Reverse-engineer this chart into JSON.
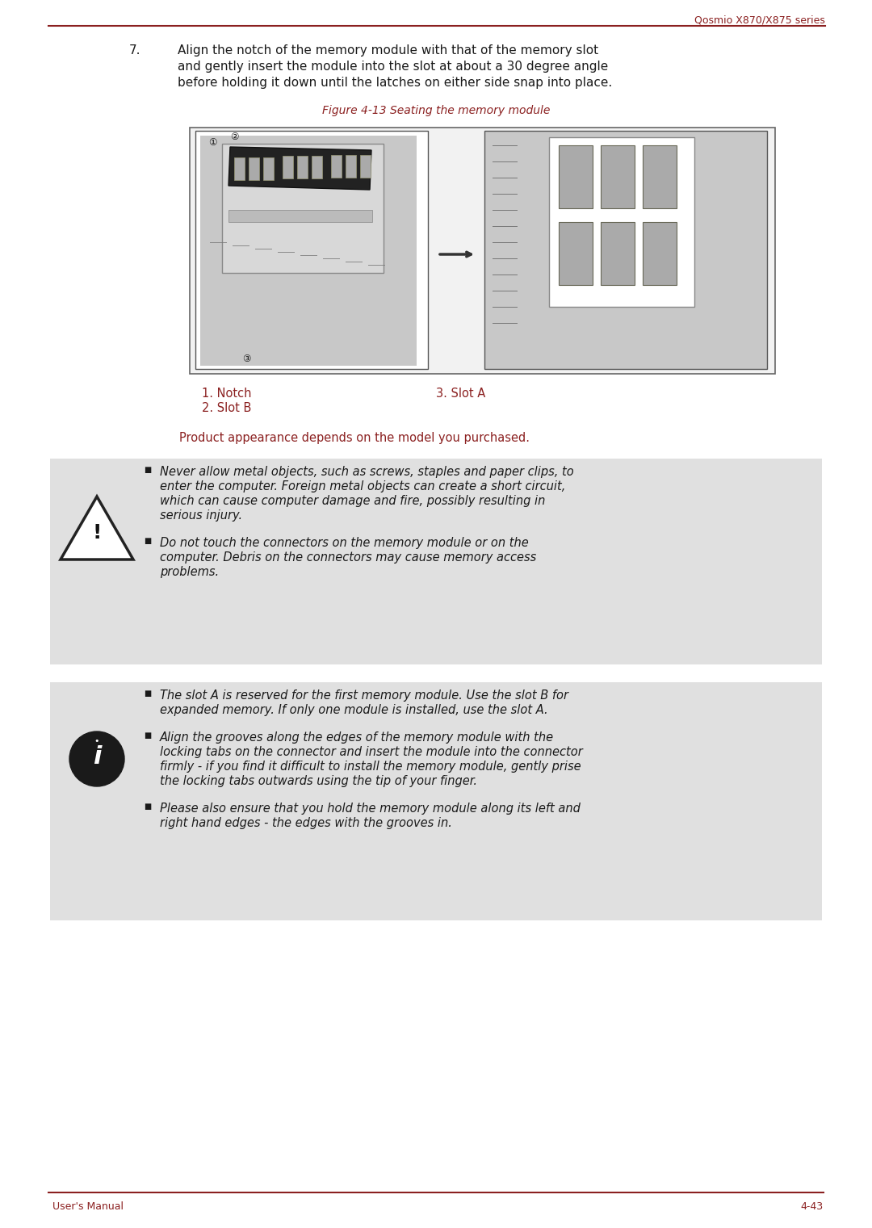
{
  "bg_color": "#ffffff",
  "header_text": "Qosmio X870/X875 series",
  "header_color": "#8b2020",
  "header_line_color": "#8b2020",
  "footer_text_left": "User's Manual",
  "footer_text_right": "4-43",
  "footer_color": "#8b2020",
  "step_number": "7.",
  "step_text_line1": "Align the notch of the memory module with that of the memory slot",
  "step_text_line2": "and gently insert the module into the slot at about a 30 degree angle",
  "step_text_line3": "before holding it down until the latches on either side snap into place.",
  "figure_caption": "Figure 4-13 Seating the memory module",
  "figure_caption_color": "#8b2020",
  "legend_color": "#8b2020",
  "legend_1": "1. Notch",
  "legend_2": "2. Slot B",
  "legend_3": "3. Slot A",
  "product_note": "Product appearance depends on the model you purchased.",
  "product_note_color": "#8b2020",
  "warning_box_color": "#e0e0e0",
  "warn1_line1": "Never allow metal objects, such as screws, staples and paper clips, to",
  "warn1_line2": "enter the computer. Foreign metal objects can create a short circuit,",
  "warn1_line3": "which can cause computer damage and fire, possibly resulting in",
  "warn1_line4": "serious injury.",
  "warn2_line1": "Do not touch the connectors on the memory module or on the",
  "warn2_line2": "computer. Debris on the connectors may cause memory access",
  "warn2_line3": "problems.",
  "info1_line1": "The slot A is reserved for the first memory module. Use the slot B for",
  "info1_line2": "expanded memory. If only one module is installed, use the slot A.",
  "info2_line1": "Align the grooves along the edges of the memory module with the",
  "info2_line2": "locking tabs on the connector and insert the module into the connector",
  "info2_line3": "firmly - if you find it difficult to install the memory module, gently prise",
  "info2_line4": "the locking tabs outwards using the tip of your finger.",
  "info3_line1": "Please also ensure that you hold the memory module along its left and",
  "info3_line2": "right hand edges - the edges with the grooves in.",
  "text_color": "#1a1a1a"
}
